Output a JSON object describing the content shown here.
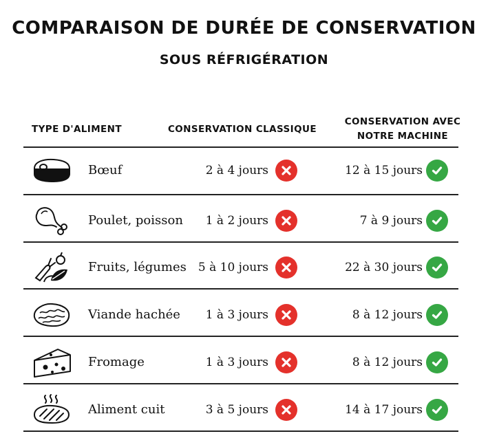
{
  "title": "COMPARAISON DE DURÉE DE CONSERVATION",
  "subtitle": "SOUS RÉFRIGÉRATION",
  "headers": {
    "type": "TYPE D'ALIMENT",
    "classic": "CONSERVATION CLASSIQUE",
    "machine_line1": "CONSERVATION AVEC",
    "machine_line2": "NOTRE MACHINE"
  },
  "colors": {
    "cross": "#e4312b",
    "check": "#36a744",
    "text": "#111111"
  },
  "rows": [
    {
      "icon": "steak-icon",
      "label": "Bœuf",
      "classic": "2 à 4 jours",
      "machine": "12 à 15 jours"
    },
    {
      "icon": "chicken-leg-icon",
      "label": "Poulet, poisson",
      "classic": "1 à 2 jours",
      "machine": "7 à 9 jours"
    },
    {
      "icon": "vegetables-icon",
      "label": "Fruits, légumes",
      "classic": "5 à 10 jours",
      "machine": "22 à 30 jours"
    },
    {
      "icon": "minced-meat-icon",
      "label": "Viande hachée",
      "classic": "1 à 3 jours",
      "machine": "8 à 12 jours"
    },
    {
      "icon": "cheese-icon",
      "label": "Fromage",
      "classic": "1 à 3 jours",
      "machine": "8 à 12 jours"
    },
    {
      "icon": "cooked-food-icon",
      "label": "Aliment cuit",
      "classic": "3 à 5 jours",
      "machine": "14 à 17 jours"
    }
  ]
}
